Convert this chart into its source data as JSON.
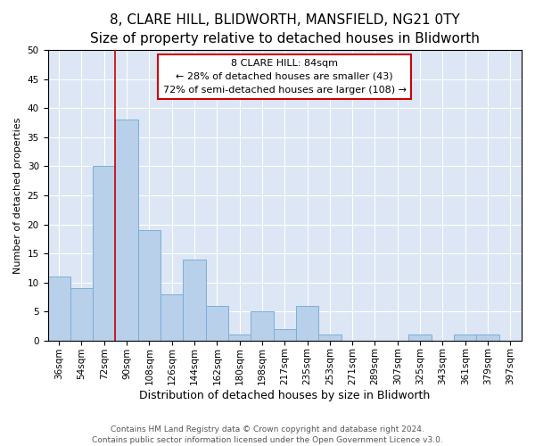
{
  "title": "8, CLARE HILL, BLIDWORTH, MANSFIELD, NG21 0TY",
  "subtitle": "Size of property relative to detached houses in Blidworth",
  "xlabel": "Distribution of detached houses by size in Blidworth",
  "ylabel": "Number of detached properties",
  "categories": [
    "36sqm",
    "54sqm",
    "72sqm",
    "90sqm",
    "108sqm",
    "126sqm",
    "144sqm",
    "162sqm",
    "180sqm",
    "198sqm",
    "217sqm",
    "235sqm",
    "253sqm",
    "271sqm",
    "289sqm",
    "307sqm",
    "325sqm",
    "343sqm",
    "361sqm",
    "379sqm",
    "397sqm"
  ],
  "values": [
    11,
    9,
    30,
    38,
    19,
    8,
    14,
    6,
    1,
    5,
    2,
    6,
    1,
    0,
    0,
    0,
    1,
    0,
    1,
    1,
    0
  ],
  "bar_color": "#b8d0ea",
  "bar_edge_color": "#7aafd4",
  "vline_x": 3.0,
  "vline_color": "#cc0000",
  "annotation_text": "8 CLARE HILL: 84sqm\n← 28% of detached houses are smaller (43)\n72% of semi-detached houses are larger (108) →",
  "annotation_box_color": "white",
  "annotation_box_edge_color": "#cc0000",
  "ylim": [
    0,
    50
  ],
  "yticks": [
    0,
    5,
    10,
    15,
    20,
    25,
    30,
    35,
    40,
    45,
    50
  ],
  "background_color": "#dce6f5",
  "footer_line1": "Contains HM Land Registry data © Crown copyright and database right 2024.",
  "footer_line2": "Contains public sector information licensed under the Open Government Licence v3.0.",
  "title_fontsize": 11,
  "subtitle_fontsize": 9.5,
  "xlabel_fontsize": 9,
  "ylabel_fontsize": 8,
  "tick_fontsize": 7.5,
  "annotation_fontsize": 8,
  "footer_fontsize": 6.5
}
